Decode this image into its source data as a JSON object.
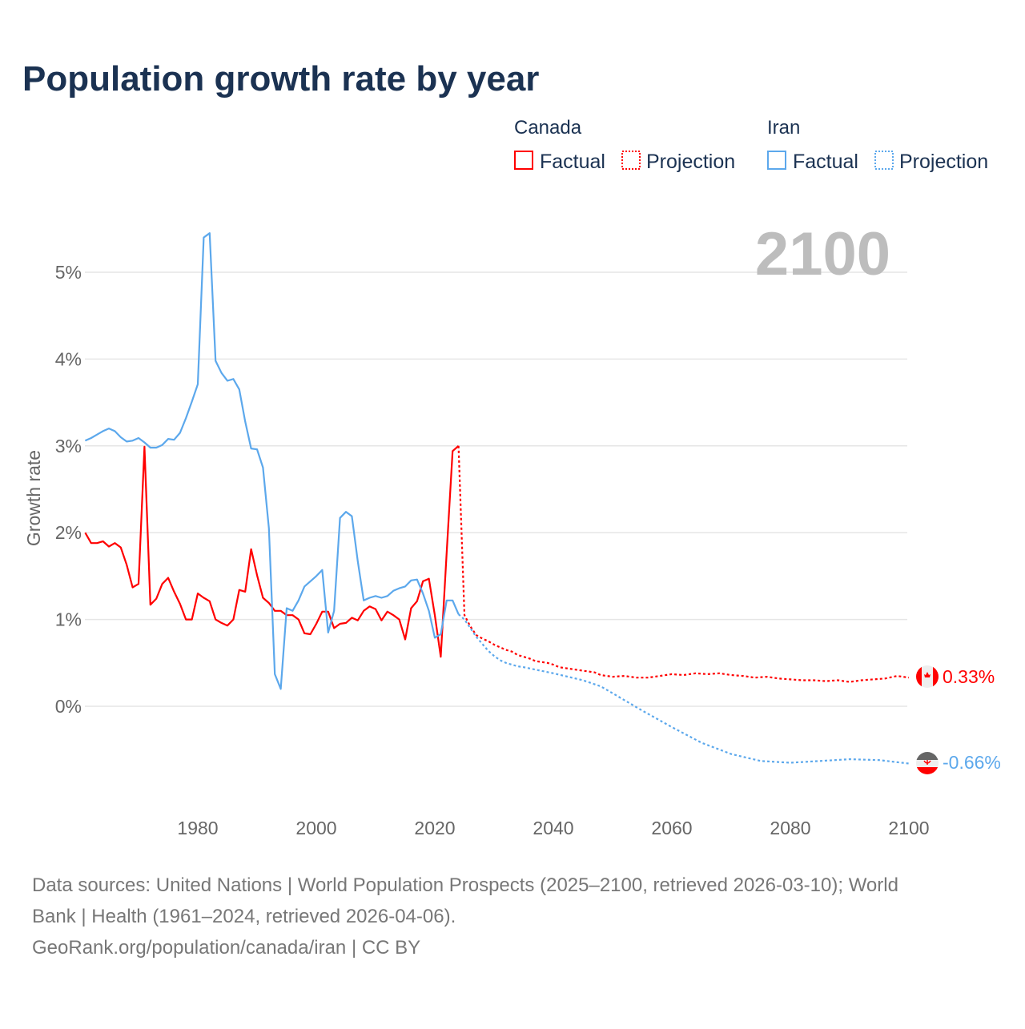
{
  "title": "Population growth rate by year",
  "current_year_label": "2100",
  "legend": {
    "groups": [
      {
        "country": "Canada",
        "factual_label": "Factual",
        "projection_label": "Projection",
        "color": "#ff0000"
      },
      {
        "country": "Iran",
        "factual_label": "Factual",
        "projection_label": "Projection",
        "color": "#5ca8ec"
      }
    ]
  },
  "footer": {
    "line1": "Data sources: United Nations | World Population Prospects (2025–2100, retrieved 2026-03-10); World",
    "line2": "Bank | Health (1961–2024, retrieved 2026-04-06).",
    "line3": "GeoRank.org/population/canada/iran | CC BY"
  },
  "chart_data": {
    "type": "line",
    "title": "Population growth rate by year",
    "xlabel": "",
    "ylabel": "Growth rate",
    "xlim": [
      1961,
      2100
    ],
    "ylim": [
      -1.1,
      5.6
    ],
    "x_ticks": [
      1980,
      2000,
      2020,
      2040,
      2060,
      2080,
      2100
    ],
    "x_tick_labels": [
      "1980",
      "2000",
      "2020",
      "2040",
      "2060",
      "2080",
      "2100"
    ],
    "y_ticks": [
      0,
      1,
      2,
      3,
      4,
      5
    ],
    "y_tick_labels": [
      "0%",
      "1%",
      "2%",
      "3%",
      "4%",
      "5%"
    ],
    "grid": true,
    "legend_position": "top-right",
    "series": [
      {
        "name": "Canada Factual",
        "country": "Canada",
        "kind": "factual",
        "color": "#ff0000",
        "x_start": 1961,
        "values": [
          2.0,
          1.88,
          1.88,
          1.9,
          1.84,
          1.88,
          1.83,
          1.63,
          1.37,
          1.41,
          2.99,
          1.17,
          1.24,
          1.41,
          1.48,
          1.32,
          1.18,
          1.0,
          1.0,
          1.3,
          1.25,
          1.21,
          1.0,
          0.96,
          0.93,
          1.0,
          1.34,
          1.32,
          1.81,
          1.51,
          1.25,
          1.19,
          1.1,
          1.1,
          1.05,
          1.05,
          1.0,
          0.84,
          0.83,
          0.95,
          1.09,
          1.09,
          0.9,
          0.95,
          0.96,
          1.02,
          0.99,
          1.1,
          1.15,
          1.12,
          0.99,
          1.09,
          1.05,
          1.0,
          0.77,
          1.13,
          1.21,
          1.44,
          1.47,
          1.05,
          0.57,
          1.77,
          2.94,
          3.0
        ]
      },
      {
        "name": "Canada Projection",
        "country": "Canada",
        "kind": "projection",
        "color": "#ff0000",
        "x": [
          2024,
          2025,
          2026,
          2027,
          2028,
          2029,
          2030,
          2031,
          2032,
          2033,
          2034,
          2035,
          2036,
          2037,
          2038,
          2039,
          2040,
          2041,
          2042,
          2043,
          2044,
          2045,
          2046,
          2047,
          2048,
          2050,
          2052,
          2054,
          2056,
          2058,
          2060,
          2062,
          2064,
          2066,
          2068,
          2070,
          2072,
          2074,
          2076,
          2078,
          2080,
          2082,
          2084,
          2086,
          2088,
          2090,
          2092,
          2094,
          2096,
          2098,
          2100
        ],
        "y": [
          3.0,
          1.05,
          0.92,
          0.82,
          0.78,
          0.75,
          0.71,
          0.68,
          0.65,
          0.63,
          0.59,
          0.57,
          0.55,
          0.52,
          0.51,
          0.5,
          0.48,
          0.45,
          0.44,
          0.43,
          0.42,
          0.41,
          0.4,
          0.39,
          0.36,
          0.34,
          0.35,
          0.33,
          0.33,
          0.35,
          0.37,
          0.36,
          0.38,
          0.37,
          0.38,
          0.36,
          0.35,
          0.33,
          0.34,
          0.32,
          0.31,
          0.3,
          0.3,
          0.29,
          0.3,
          0.28,
          0.3,
          0.31,
          0.32,
          0.35,
          0.33
        ],
        "end_label": "0.33%"
      },
      {
        "name": "Iran Factual",
        "country": "Iran",
        "kind": "factual",
        "color": "#5ca8ec",
        "x_start": 1961,
        "values": [
          3.06,
          3.09,
          3.13,
          3.17,
          3.2,
          3.17,
          3.1,
          3.05,
          3.06,
          3.09,
          3.04,
          2.98,
          2.98,
          3.01,
          3.08,
          3.07,
          3.15,
          3.32,
          3.51,
          3.71,
          5.4,
          5.45,
          3.98,
          3.84,
          3.75,
          3.77,
          3.65,
          3.28,
          2.97,
          2.96,
          2.75,
          2.05,
          0.37,
          0.2,
          1.13,
          1.1,
          1.22,
          1.38,
          1.44,
          1.5,
          1.57,
          0.85,
          1.1,
          2.17,
          2.24,
          2.19,
          1.67,
          1.22,
          1.25,
          1.27,
          1.25,
          1.27,
          1.33,
          1.36,
          1.38,
          1.45,
          1.46,
          1.3,
          1.1,
          0.79,
          0.83,
          1.22,
          1.22,
          1.06
        ]
      },
      {
        "name": "Iran Projection",
        "country": "Iran",
        "kind": "projection",
        "color": "#5ca8ec",
        "x": [
          2024,
          2025,
          2026,
          2027,
          2028,
          2029,
          2030,
          2031,
          2032,
          2033,
          2034,
          2035,
          2040,
          2045,
          2048,
          2050,
          2055,
          2060,
          2065,
          2070,
          2075,
          2080,
          2085,
          2090,
          2095,
          2100
        ],
        "y": [
          1.06,
          1.0,
          0.9,
          0.8,
          0.72,
          0.64,
          0.58,
          0.53,
          0.5,
          0.48,
          0.46,
          0.45,
          0.38,
          0.3,
          0.23,
          0.15,
          -0.05,
          -0.24,
          -0.42,
          -0.55,
          -0.63,
          -0.65,
          -0.63,
          -0.61,
          -0.62,
          -0.66
        ],
        "end_label": "-0.66%"
      }
    ]
  }
}
